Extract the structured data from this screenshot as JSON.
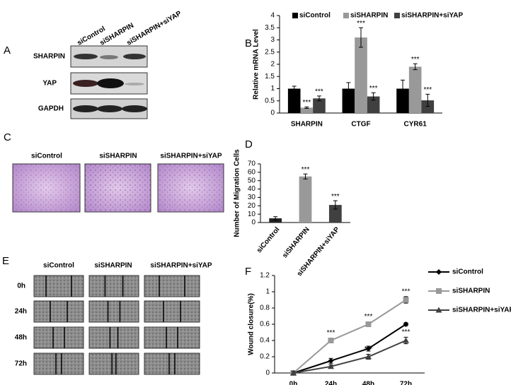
{
  "panels": [
    "A",
    "B",
    "C",
    "D",
    "E",
    "F"
  ],
  "blot": {
    "lanes": [
      "siControl",
      "siSHARPIN",
      "siSHARPIN+siYAP"
    ],
    "rows": [
      "SHARPIN",
      "YAP",
      "GAPDH"
    ]
  },
  "migration_images": {
    "labels": [
      "siControl",
      "siSHARPIN",
      "siSHARPIN+siYAP"
    ]
  },
  "wound_images": {
    "columns": [
      "siControl",
      "siSHARPIN",
      "siSHARPIN+siYAP"
    ],
    "rows": [
      "0h",
      "24h",
      "48h",
      "72h"
    ]
  },
  "chart_data": [
    {
      "type": "bar",
      "ylabel": "Relative mRNA Level",
      "categories": [
        "SHARPIN",
        "CTGF",
        "CYR61"
      ],
      "series": [
        {
          "name": "siControl",
          "color": "#000000",
          "values": [
            1,
            1,
            1
          ],
          "errors": [
            0.1,
            0.25,
            0.35
          ],
          "significance": [
            null,
            null,
            null
          ]
        },
        {
          "name": "siSHARPIN",
          "color": "#999999",
          "values": [
            0.22,
            3.1,
            1.9
          ],
          "errors": [
            0.03,
            0.4,
            0.12
          ],
          "significance": [
            "***",
            "***",
            "***"
          ]
        },
        {
          "name": "siSHARPIN+siYAP",
          "color": "#404040",
          "values": [
            0.6,
            0.68,
            0.52
          ],
          "errors": [
            0.1,
            0.15,
            0.25
          ],
          "significance": [
            "***",
            "***",
            "***"
          ]
        }
      ],
      "ylim": [
        0,
        4
      ],
      "yticks": [
        0,
        0.5,
        1,
        1.5,
        2,
        2.5,
        3,
        3.5,
        4
      ],
      "legend": "top"
    },
    {
      "type": "bar",
      "ylabel": "Number of Migration Cells",
      "categories": [
        "siControl",
        "siSHARPIN",
        "siSHARPIN+siYAP"
      ],
      "values": [
        5,
        55,
        21
      ],
      "errors": [
        2,
        3,
        5
      ],
      "colors": [
        "#222222",
        "#999999",
        "#404040"
      ],
      "significance": [
        null,
        "***",
        "***"
      ],
      "ylim": [
        0,
        70
      ],
      "yticks": [
        0,
        10,
        20,
        30,
        40,
        50,
        60,
        70
      ]
    },
    {
      "type": "line",
      "ylabel": "Wound closure(%)",
      "categories": [
        "0h",
        "24h",
        "48h",
        "72h"
      ],
      "series": [
        {
          "name": "siControl",
          "color": "#000000",
          "marker": "diamond",
          "values": [
            0,
            0.15,
            0.3,
            0.6
          ],
          "errors": [
            0.02,
            0.03,
            0.03,
            0.02
          ],
          "significance": [
            null,
            null,
            null,
            null
          ]
        },
        {
          "name": "siSHARPIN",
          "color": "#999999",
          "marker": "square",
          "values": [
            0,
            0.4,
            0.6,
            0.9
          ],
          "errors": [
            0.02,
            0.03,
            0.03,
            0.04
          ],
          "significance": [
            null,
            "***",
            "***",
            "***"
          ]
        },
        {
          "name": "siSHARPIN+siYAP",
          "color": "#404040",
          "marker": "triangle",
          "values": [
            0,
            0.08,
            0.2,
            0.4
          ],
          "errors": [
            0.02,
            0.02,
            0.03,
            0.04
          ],
          "significance": [
            null,
            null,
            "***",
            "***"
          ]
        }
      ],
      "ylim": [
        0,
        1.2
      ],
      "yticks": [
        0,
        0.2,
        0.4,
        0.6,
        0.8,
        1,
        1.2
      ],
      "legend": "right"
    }
  ]
}
